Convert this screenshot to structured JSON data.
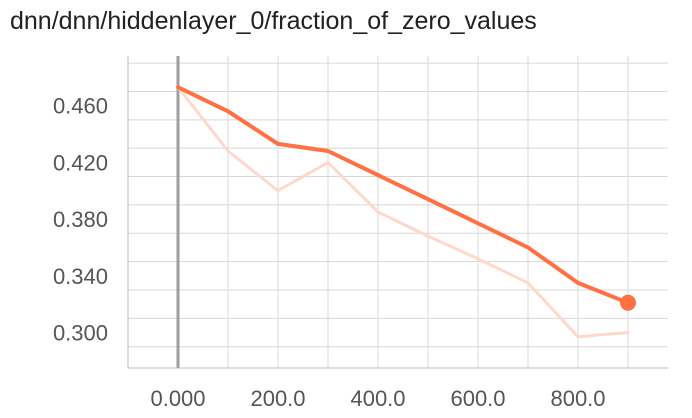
{
  "title": "dnn/dnn/hiddenlayer_0/fraction_of_zero_values",
  "chart_data": {
    "type": "line",
    "title": "dnn/dnn/hiddenlayer_0/fraction_of_zero_values",
    "xlabel": "",
    "ylabel": "",
    "x_ticks": [
      "0.000",
      "200.0",
      "400.0",
      "600.0",
      "800.0"
    ],
    "y_ticks": [
      "0.460",
      "0.420",
      "0.380",
      "0.340",
      "0.300"
    ],
    "xlim": [
      -100,
      980
    ],
    "ylim": [
      0.275,
      0.495
    ],
    "grid": true,
    "series": [
      {
        "role": "smoothed",
        "color": "#ff7043",
        "x": [
          0,
          100,
          200,
          300,
          400,
          500,
          600,
          700,
          800,
          900
        ],
        "y": [
          0.473,
          0.456,
          0.433,
          0.428,
          0.411,
          0.394,
          0.377,
          0.36,
          0.335,
          0.321
        ]
      },
      {
        "role": "raw",
        "color": "#ffd8cc",
        "x": [
          0,
          100,
          200,
          300,
          400,
          500,
          600,
          700,
          800,
          900
        ],
        "y": [
          0.473,
          0.428,
          0.4,
          0.42,
          0.385,
          0.368,
          0.352,
          0.335,
          0.297,
          0.3
        ]
      }
    ],
    "highlight_point": {
      "x": 900,
      "y": 0.321
    }
  }
}
